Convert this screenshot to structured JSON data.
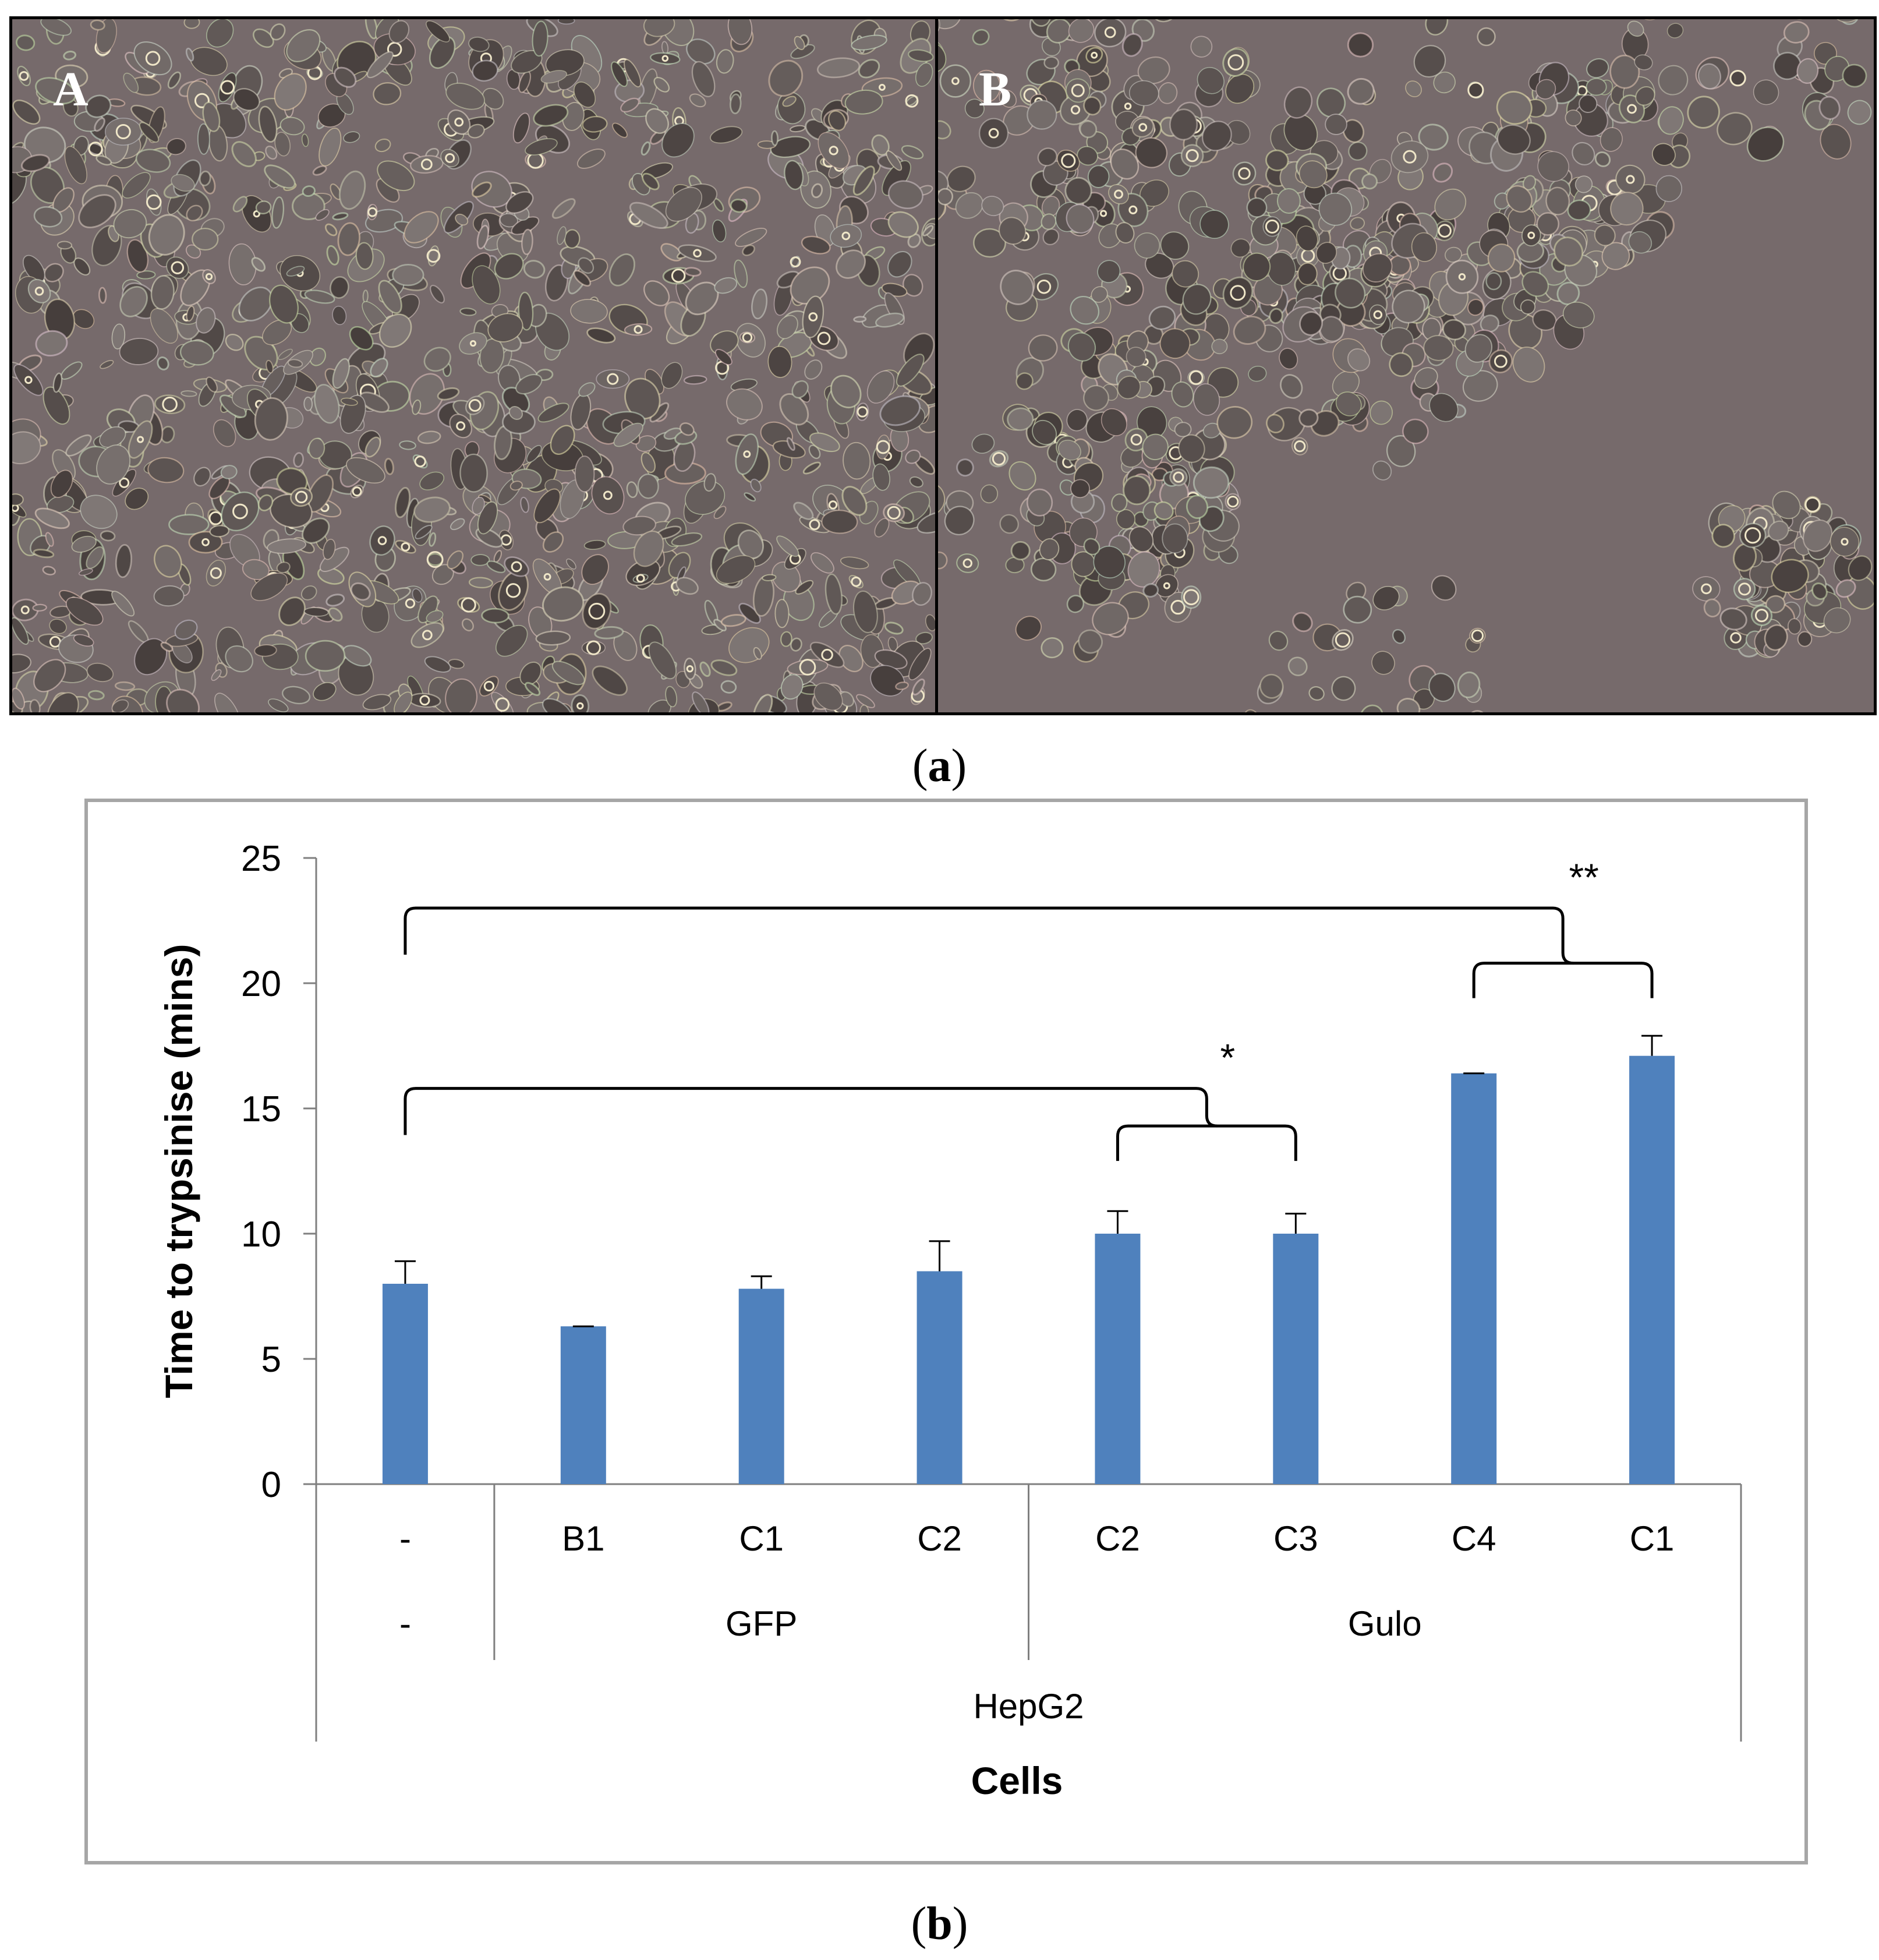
{
  "panel_a": {
    "label_a": "A",
    "label_b": "B",
    "caption_open": "(",
    "caption_letter": "a",
    "caption_close": ")"
  },
  "panel_b": {
    "caption_open": "(",
    "caption_letter": "b",
    "caption_close": ")"
  },
  "colors": {
    "bar": "#4f81bd",
    "frame": "#a6a6a6",
    "micro_bg": "#766a6b"
  },
  "chart_data": {
    "type": "bar",
    "ylabel": "Time to trypsinise (mins)",
    "xlabel": "Cells",
    "ylim": [
      0,
      25
    ],
    "yticks": [
      0,
      5,
      10,
      15,
      20,
      25
    ],
    "grid": false,
    "legend": "none",
    "categories": [
      "-",
      "B1",
      "C1",
      "C2",
      "C2",
      "C3",
      "C4",
      "C1"
    ],
    "values": [
      8.0,
      6.3,
      7.8,
      8.5,
      10.0,
      10.0,
      16.4,
      17.1
    ],
    "errors": [
      0.9,
      0.0,
      0.5,
      1.2,
      0.9,
      0.8,
      0.0,
      0.8
    ],
    "groups": [
      {
        "label": "-",
        "from": 0,
        "to": 0
      },
      {
        "label": "GFP",
        "from": 1,
        "to": 3
      },
      {
        "label": "Gulo",
        "from": 4,
        "to": 7
      }
    ],
    "supergroup": "HepG2",
    "significance": [
      {
        "label": "*",
        "control": 0,
        "from": 4,
        "to": 5,
        "bracket_y": 15.8,
        "sub_y": 14.3
      },
      {
        "label": "**",
        "control": 0,
        "from": 6,
        "to": 7,
        "bracket_y": 23.0,
        "sub_y": 20.8
      }
    ]
  }
}
